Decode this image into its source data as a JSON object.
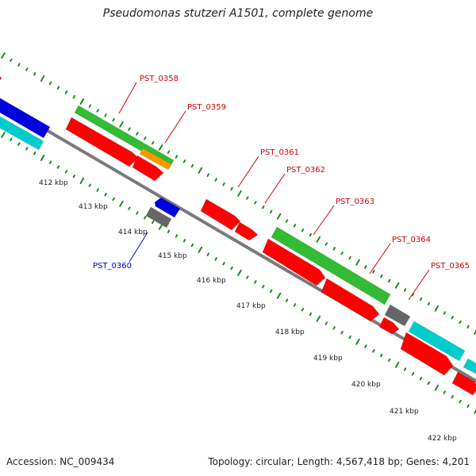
{
  "title": "Pseudomonas stutzeri A1501, complete genome",
  "footer": {
    "accession": "Accession: NC_009434",
    "info": "Topology: circular; Length: 4,567,418 bp; Genes: 4,201"
  },
  "colors": {
    "backbone": "#7a7a7a",
    "ticks": "#1e8a1e",
    "label_red": "#d40000",
    "label_blue": "#0000cc",
    "green_gene": "#33bb33",
    "red_gene": "#ff0000",
    "orange_gene": "#ff9900",
    "blue_gene": "#0000dd",
    "cyan_gene": "#00cccc",
    "gray_gene": "#666666"
  },
  "kbp_labels": [
    "412 kbp",
    "413 kbp",
    "414 kbp",
    "415 kbp",
    "416 kbp",
    "417 kbp",
    "418 kbp",
    "419 kbp",
    "420 kbp",
    "421 kbp",
    "422 kbp"
  ],
  "gene_labels": [
    {
      "name": "PST_0358",
      "color": "label_red"
    },
    {
      "name": "PST_0359",
      "color": "label_red"
    },
    {
      "name": "PST_0360",
      "color": "label_blue"
    },
    {
      "name": "PST_0361",
      "color": "label_red"
    },
    {
      "name": "PST_0362",
      "color": "label_red"
    },
    {
      "name": "PST_0363",
      "color": "label_red"
    },
    {
      "name": "PST_0364",
      "color": "label_red"
    },
    {
      "name": "PST_0365",
      "color": "label_red"
    }
  ]
}
